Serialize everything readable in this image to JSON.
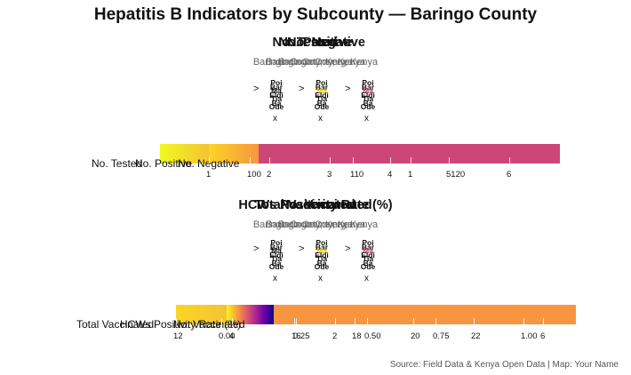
{
  "title": "Hepatitis B Indicators by Subcounty — Baringo County",
  "caption": "Source: Field Data & Kenya Open Data | Map: Your Name",
  "map_glyphs": {
    "lines": [
      "Poi",
      "Bar",
      "Ma",
      "Eldi",
      "Tia",
      "Ba",
      "Ode"
    ],
    "arrow": ">",
    "x_mark": "x"
  },
  "chart_data": [
    {
      "type": "choropleth-facets",
      "facet_titles": [
        "No. Tested",
        "No. Positive",
        "No. Negative"
      ],
      "subtitles": [
        "Baringo County, Kenya",
        "Baringo County, Kenya",
        "Baringo County, Kenya"
      ],
      "legend_labels": [
        "No. Tested",
        "No. Positive",
        "No. Negative"
      ],
      "scales": [
        {
          "name": "No. Tested",
          "colors": [
            "#f0f921",
            "#f5c334"
          ],
          "ticks": [
            "1",
            "100"
          ]
        },
        {
          "name": "No. Positive",
          "colors": [
            "#fbd524",
            "#f89540"
          ],
          "ticks": [
            "2"
          ]
        },
        {
          "name": "No. Negative",
          "colors": [
            "#cc4778",
            "#cc4778"
          ],
          "ticks": [
            "3",
            "110",
            "4",
            "1",
            "5120",
            "6"
          ]
        }
      ]
    },
    {
      "type": "choropleth-facets",
      "facet_titles": [
        "Total Vaccinated",
        "HCWs Positivity Rate (%)",
        "No. Vaccinated"
      ],
      "subtitles": [
        "Baringo County, Kenya",
        "Baringo County, Kenya",
        "Baringo County, Kenya"
      ],
      "legend_labels": [
        "Total Vaccinated",
        "HCWs Positivity Rate (%)",
        "No. Vaccinated"
      ],
      "scales": [
        {
          "name": "Total Vaccinated",
          "colors": [
            "#fbd524",
            "#f5c334"
          ],
          "ticks": [
            "12"
          ]
        },
        {
          "name": "HCWs Positivity Rate (%)",
          "colors": [
            "#f0f921",
            "#fca636",
            "#e16462",
            "#b12a90",
            "#6a00a8",
            "#0d0887"
          ],
          "ticks": [
            "0.00",
            "0.25",
            "0.50",
            "0.75",
            "1.00"
          ]
        },
        {
          "name": "No. Vaccinated",
          "colors": [
            "#f89540"
          ],
          "ticks": [
            "4",
            "16",
            "2",
            "18",
            "20",
            "22",
            "6"
          ]
        }
      ]
    }
  ]
}
